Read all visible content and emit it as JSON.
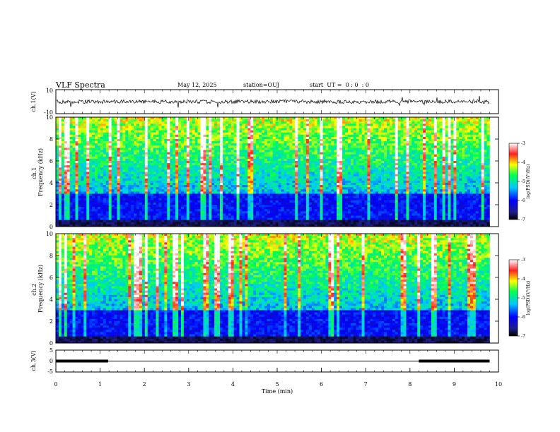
{
  "header": {
    "title": "VLF Spectra",
    "date": "May 12, 2025",
    "station": "station=OUJ",
    "start_time": "start  UT =  0 : 0  : 0"
  },
  "chart_data": [
    {
      "type": "line",
      "panel": "ch1-waveform",
      "ylabel": "ch.1(V)",
      "ylim": [
        -10,
        10
      ],
      "yticks": [
        "10",
        "-10"
      ],
      "xlim": [
        0,
        10
      ]
    },
    {
      "type": "heatmap",
      "panel": "ch1-spectrogram",
      "ylabel": "ch.1 Frequency (kHz)",
      "ylim": [
        0,
        10
      ],
      "yticks": [
        "0",
        "2",
        "4",
        "6",
        "8",
        "10"
      ],
      "xlim": [
        0,
        10
      ],
      "colorbar": {
        "label": "log(PSD)(V²/Hz)",
        "range": [
          -7,
          -3
        ],
        "ticks": [
          "-3",
          "-4",
          "-5",
          "-6",
          "-7"
        ]
      }
    },
    {
      "type": "heatmap",
      "panel": "ch2-spectrogram",
      "ylabel": "ch.2 Frequency (kHz)",
      "ylim": [
        0,
        10
      ],
      "yticks": [
        "0",
        "2",
        "4",
        "6",
        "8",
        "10"
      ],
      "xlim": [
        0,
        10
      ],
      "colorbar": {
        "label": "log(PSD)(V²/Hz)",
        "range": [
          -7,
          -3
        ],
        "ticks": [
          "-3",
          "-4",
          "-5",
          "-6",
          "-7"
        ]
      }
    },
    {
      "type": "line",
      "panel": "ch3-signal",
      "ylabel": "ch.3(V)",
      "ylim": [
        -5,
        5
      ],
      "yticks": [
        "5",
        "0",
        "-5"
      ],
      "xlim": [
        0,
        10
      ],
      "xlabel": "Time (min)",
      "xticks": [
        "0",
        "1",
        "2",
        "3",
        "4",
        "5",
        "6",
        "7",
        "8",
        "9",
        "10"
      ],
      "segments": [
        {
          "x": [
            0.0,
            1.18
          ],
          "y": 0.0
        },
        {
          "x": [
            8.2,
            9.8
          ],
          "y": 0.0
        }
      ],
      "baseline": {
        "x": [
          0.0,
          9.8
        ],
        "y": 0.0
      }
    }
  ]
}
